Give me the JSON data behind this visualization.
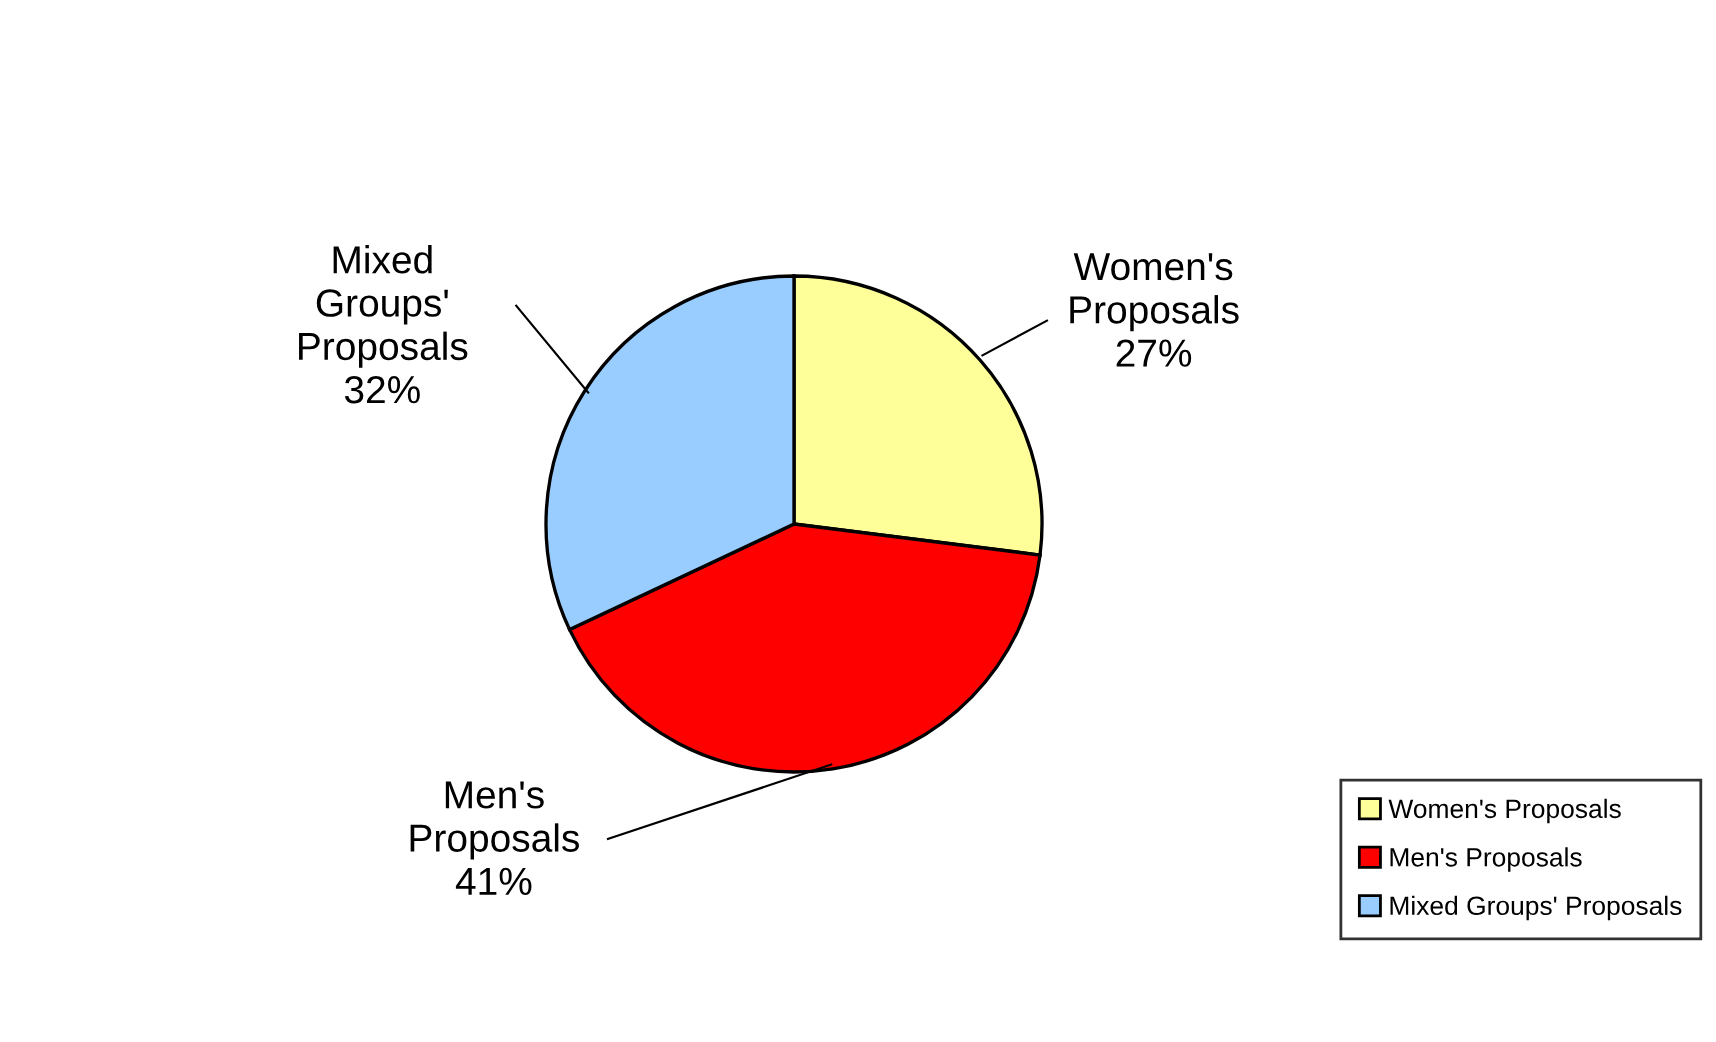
{
  "chart_data": {
    "type": "pie",
    "categories": [
      "Women's Proposals",
      "Men's Proposals",
      "Mixed Groups' Proposals"
    ],
    "values": [
      27,
      41,
      32
    ],
    "value_labels": [
      "27%",
      "41%",
      "32%"
    ],
    "colors": [
      "#ffff99",
      "#ff0000",
      "#99ccff"
    ],
    "legend": "bottom right"
  }
}
